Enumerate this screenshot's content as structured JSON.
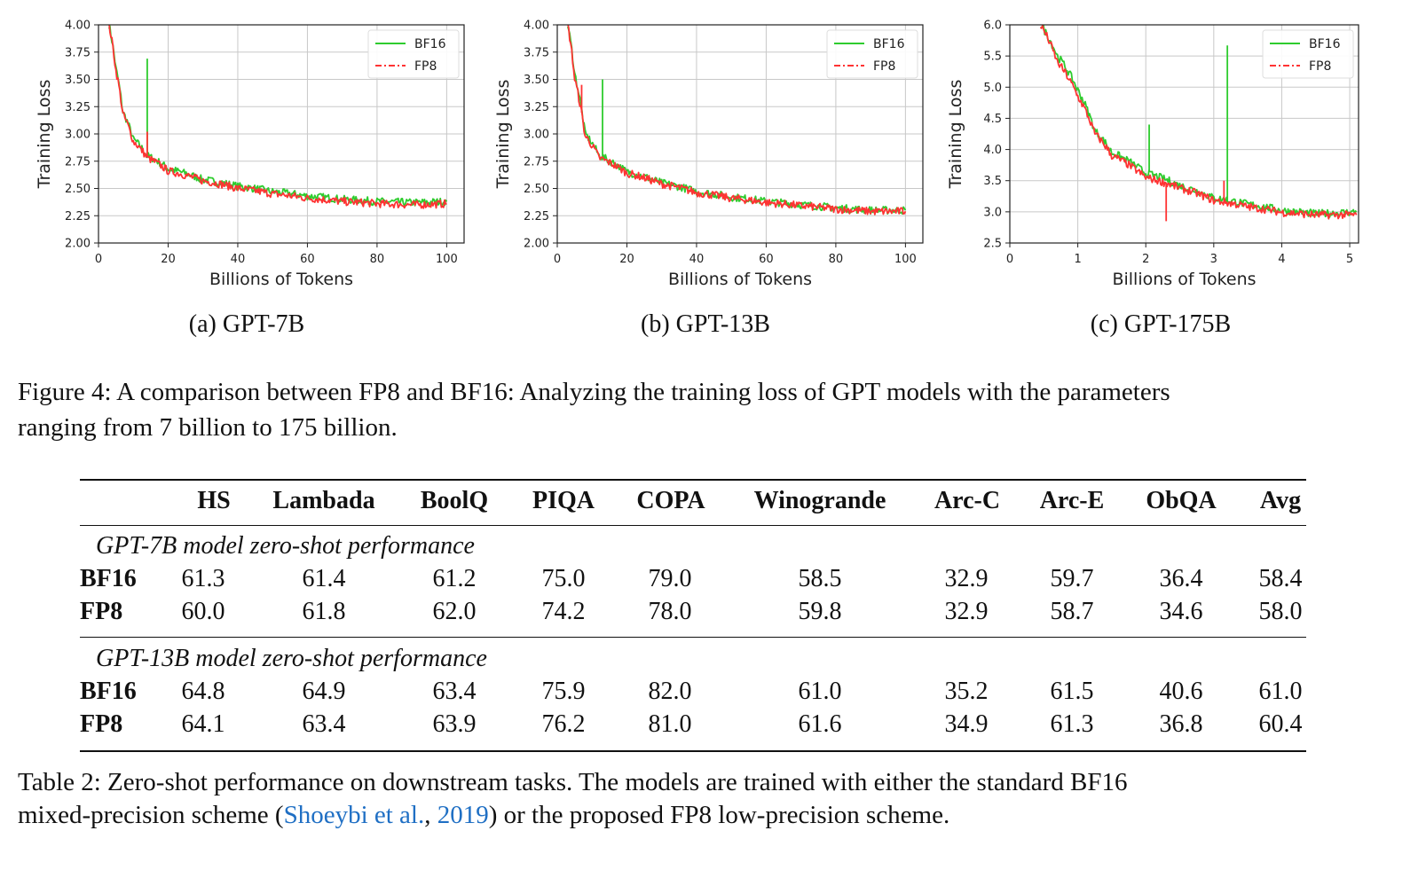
{
  "chart_data": [
    {
      "type": "line",
      "subcaption": "(a) GPT-7B",
      "xlabel": "Billions of Tokens",
      "ylabel": "Training Loss",
      "xlim": [
        0,
        105
      ],
      "ylim": [
        2.0,
        4.0
      ],
      "xticks": [
        0,
        20,
        40,
        60,
        80,
        100
      ],
      "yticks": [
        "2.00",
        "2.25",
        "2.50",
        "2.75",
        "3.00",
        "3.25",
        "3.50",
        "3.75",
        "4.00"
      ],
      "grid": true,
      "legend": "top-right",
      "series": [
        {
          "name": "BF16",
          "color": "#2ecc2e",
          "style": "solid",
          "points": [
            [
              3,
              4.0
            ],
            [
              5,
              3.6
            ],
            [
              7,
              3.2
            ],
            [
              10,
              2.95
            ],
            [
              14,
              2.8
            ],
            [
              20,
              2.68
            ],
            [
              30,
              2.58
            ],
            [
              40,
              2.52
            ],
            [
              50,
              2.47
            ],
            [
              60,
              2.43
            ],
            [
              70,
              2.4
            ],
            [
              80,
              2.38
            ],
            [
              90,
              2.37
            ],
            [
              100,
              2.38
            ]
          ],
          "spikes": [
            [
              14,
              3.69
            ]
          ]
        },
        {
          "name": "FP8",
          "color": "#ff3333",
          "style": "dashdot",
          "points": [
            [
              3,
              4.0
            ],
            [
              5,
              3.58
            ],
            [
              7,
              3.18
            ],
            [
              10,
              2.93
            ],
            [
              14,
              2.78
            ],
            [
              20,
              2.66
            ],
            [
              30,
              2.57
            ],
            [
              40,
              2.5
            ],
            [
              50,
              2.45
            ],
            [
              60,
              2.41
            ],
            [
              70,
              2.38
            ],
            [
              80,
              2.36
            ],
            [
              90,
              2.35
            ],
            [
              100,
              2.36
            ]
          ],
          "spikes": [
            [
              14,
              3.02
            ]
          ]
        }
      ]
    },
    {
      "type": "line",
      "subcaption": "(b) GPT-13B",
      "xlabel": "Billions of Tokens",
      "ylabel": "Training Loss",
      "xlim": [
        0,
        105
      ],
      "ylim": [
        2.0,
        4.0
      ],
      "xticks": [
        0,
        20,
        40,
        60,
        80,
        100
      ],
      "yticks": [
        "2.00",
        "2.25",
        "2.50",
        "2.75",
        "3.00",
        "3.25",
        "3.50",
        "3.75",
        "4.00"
      ],
      "grid": true,
      "legend": "top-right",
      "series": [
        {
          "name": "BF16",
          "color": "#2ecc2e",
          "style": "solid",
          "points": [
            [
              3,
              4.0
            ],
            [
              5,
              3.55
            ],
            [
              8,
              3.0
            ],
            [
              12,
              2.8
            ],
            [
              20,
              2.65
            ],
            [
              30,
              2.55
            ],
            [
              40,
              2.47
            ],
            [
              50,
              2.42
            ],
            [
              60,
              2.38
            ],
            [
              70,
              2.35
            ],
            [
              80,
              2.32
            ],
            [
              90,
              2.3
            ],
            [
              100,
              2.3
            ]
          ],
          "spikes": [
            [
              13,
              3.5
            ]
          ]
        },
        {
          "name": "FP8",
          "color": "#ff3333",
          "style": "dashdot",
          "points": [
            [
              3,
              4.0
            ],
            [
              5,
              3.5
            ],
            [
              8,
              2.98
            ],
            [
              12,
              2.78
            ],
            [
              20,
              2.64
            ],
            [
              30,
              2.54
            ],
            [
              40,
              2.46
            ],
            [
              50,
              2.41
            ],
            [
              60,
              2.37
            ],
            [
              70,
              2.34
            ],
            [
              80,
              2.31
            ],
            [
              90,
              2.29
            ],
            [
              100,
              2.29
            ]
          ],
          "spikes": [
            [
              7,
              3.45
            ]
          ]
        }
      ]
    },
    {
      "type": "line",
      "subcaption": "(c) GPT-175B",
      "xlabel": "Billions of Tokens",
      "ylabel": "Training Loss",
      "xlim": [
        0,
        5.13
      ],
      "ylim": [
        2.5,
        6.0
      ],
      "xticks": [
        0,
        1,
        2,
        3,
        4,
        5
      ],
      "yticks": [
        "2.5",
        "3.0",
        "3.5",
        "4.0",
        "4.5",
        "5.0",
        "5.5",
        "6.0"
      ],
      "grid": true,
      "legend": "top-right",
      "series": [
        {
          "name": "BF16",
          "color": "#2ecc2e",
          "style": "solid",
          "points": [
            [
              0.45,
              6.0
            ],
            [
              0.7,
              5.5
            ],
            [
              1.0,
              4.95
            ],
            [
              1.25,
              4.3
            ],
            [
              1.5,
              3.95
            ],
            [
              2.0,
              3.62
            ],
            [
              2.5,
              3.42
            ],
            [
              3.0,
              3.22
            ],
            [
              3.5,
              3.12
            ],
            [
              4.0,
              3.02
            ],
            [
              4.5,
              2.97
            ],
            [
              5.1,
              3.0
            ]
          ],
          "spikes": [
            [
              2.05,
              4.4
            ],
            [
              3.2,
              5.67
            ]
          ]
        },
        {
          "name": "FP8",
          "color": "#ff3333",
          "style": "dashdot",
          "points": [
            [
              0.45,
              6.0
            ],
            [
              0.7,
              5.4
            ],
            [
              1.0,
              4.85
            ],
            [
              1.25,
              4.25
            ],
            [
              1.5,
              3.9
            ],
            [
              2.0,
              3.55
            ],
            [
              2.5,
              3.38
            ],
            [
              3.0,
              3.18
            ],
            [
              3.5,
              3.08
            ],
            [
              4.0,
              2.99
            ],
            [
              4.5,
              2.95
            ],
            [
              5.1,
              2.95
            ]
          ],
          "spikes": [
            [
              2.3,
              2.85
            ],
            [
              3.15,
              3.5
            ]
          ]
        }
      ]
    }
  ],
  "figure_caption": {
    "line1": "Figure 4:  A comparison between FP8 and BF16:  Analyzing the training loss of GPT models with the parameters",
    "line2": "ranging from 7 billion to 175 billion."
  },
  "table": {
    "columns": [
      "HS",
      "Lambada",
      "BoolQ",
      "PIQA",
      "COPA",
      "Winogrande",
      "Arc-C",
      "Arc-E",
      "ObQA",
      "Avg"
    ],
    "sections": [
      {
        "title": "GPT-7B model zero-shot performance",
        "rows": [
          {
            "label": "BF16",
            "values": [
              "61.3",
              "61.4",
              "61.2",
              "75.0",
              "79.0",
              "58.5",
              "32.9",
              "59.7",
              "36.4",
              "58.4"
            ]
          },
          {
            "label": "FP8",
            "values": [
              "60.0",
              "61.8",
              "62.0",
              "74.2",
              "78.0",
              "59.8",
              "32.9",
              "58.7",
              "34.6",
              "58.0"
            ]
          }
        ]
      },
      {
        "title": "GPT-13B model zero-shot performance",
        "rows": [
          {
            "label": "BF16",
            "values": [
              "64.8",
              "64.9",
              "63.4",
              "75.9",
              "82.0",
              "61.0",
              "35.2",
              "61.5",
              "40.6",
              "61.0"
            ]
          },
          {
            "label": "FP8",
            "values": [
              "64.1",
              "63.4",
              "63.9",
              "76.2",
              "81.0",
              "61.6",
              "34.9",
              "61.3",
              "36.8",
              "60.4"
            ]
          }
        ]
      }
    ]
  },
  "table_caption": {
    "line1": "Table 2:  Zero-shot performance on downstream tasks.  The models are trained with either the standard BF16",
    "line2_pre": "mixed-precision scheme (",
    "cite_author": "Shoeybi et al.",
    "cite_sep": ", ",
    "cite_year": "2019",
    "line2_post": ") or the proposed FP8 low-precision scheme.",
    "link_color": "#1f6fc4"
  }
}
